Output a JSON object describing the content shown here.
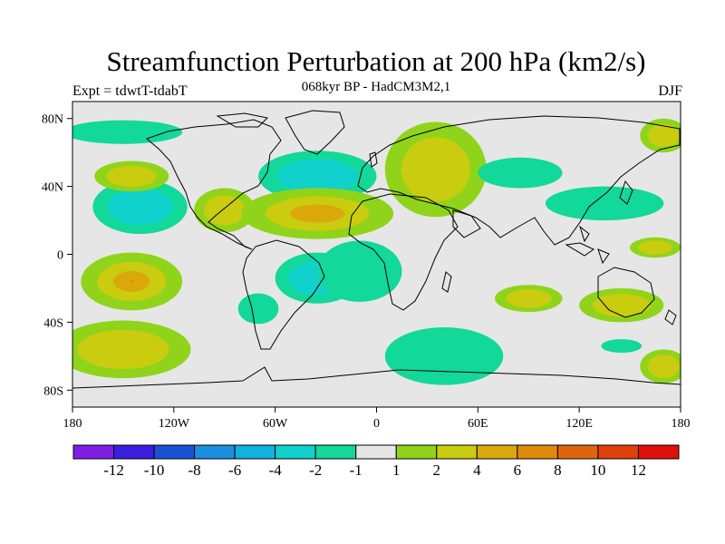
{
  "chart_data": {
    "type": "heatmap",
    "title": "Streamfunction Perturbation at 200 hPa (km2/s)",
    "subtitle": "068kyr BP - HadCM3M2,1",
    "left_label": "Expt = tdwtT-tdabT",
    "right_label": "DJF",
    "xlim": [
      -180,
      180
    ],
    "ylim": [
      -90,
      90
    ],
    "x_ticks": [
      {
        "value": -180,
        "label": "180"
      },
      {
        "value": -120,
        "label": "120W"
      },
      {
        "value": -60,
        "label": "60W"
      },
      {
        "value": 0,
        "label": "0"
      },
      {
        "value": 60,
        "label": "60E"
      },
      {
        "value": 120,
        "label": "120E"
      },
      {
        "value": 180,
        "label": "180"
      }
    ],
    "y_ticks": [
      {
        "value": 80,
        "label": "80N"
      },
      {
        "value": 40,
        "label": "40N"
      },
      {
        "value": 0,
        "label": "0"
      },
      {
        "value": -40,
        "label": "40S"
      },
      {
        "value": -80,
        "label": "80S"
      }
    ],
    "colorbar": {
      "colors": [
        "#7f1fe6",
        "#3b1ee0",
        "#1a52d6",
        "#1a8fe0",
        "#10b3e0",
        "#11d1cc",
        "#12d89a",
        "#e6e6e6",
        "#8fd41a",
        "#c9cc0f",
        "#dba80c",
        "#e08a0a",
        "#e0650a",
        "#e0400a",
        "#e00f0a"
      ],
      "labels": [
        "-12",
        "-10",
        "-8",
        "-6",
        "-4",
        "-2",
        "-1",
        "1",
        "2",
        "4",
        "6",
        "8",
        "10",
        "12"
      ]
    },
    "anomalies": [
      {
        "lon": -140,
        "lat": 28,
        "rlon": 28,
        "rlat": 16,
        "value": -3
      },
      {
        "lon": -145,
        "lat": 46,
        "rlon": 22,
        "rlat": 9,
        "value": 2.5
      },
      {
        "lon": -150,
        "lat": 72,
        "rlon": 35,
        "rlat": 7,
        "value": -1.5
      },
      {
        "lon": -145,
        "lat": -16,
        "rlon": 30,
        "rlat": 17,
        "value": 6
      },
      {
        "lon": -150,
        "lat": -56,
        "rlon": 40,
        "rlat": 17,
        "value": 2.5
      },
      {
        "lon": -90,
        "lat": 26,
        "rlon": 18,
        "rlat": 13,
        "value": 3
      },
      {
        "lon": -35,
        "lat": 46,
        "rlon": 35,
        "rlat": 15,
        "value": -3
      },
      {
        "lon": -35,
        "lat": 24,
        "rlon": 45,
        "rlat": 15,
        "value": 5
      },
      {
        "lon": 35,
        "lat": 50,
        "rlon": 30,
        "rlat": 28,
        "value": 3
      },
      {
        "lon": -35,
        "lat": -14,
        "rlon": 25,
        "rlat": 15,
        "value": -3
      },
      {
        "lon": -70,
        "lat": -32,
        "rlon": 12,
        "rlat": 9,
        "value": -1.5
      },
      {
        "lon": -10,
        "lat": -10,
        "rlon": 25,
        "rlat": 18,
        "value": -1.5
      },
      {
        "lon": 40,
        "lat": -60,
        "rlon": 35,
        "rlat": 17,
        "value": -1.5
      },
      {
        "lon": 85,
        "lat": 48,
        "rlon": 25,
        "rlat": 9,
        "value": -1.5
      },
      {
        "lon": 135,
        "lat": 30,
        "rlon": 35,
        "rlat": 10,
        "value": -1.5
      },
      {
        "lon": 90,
        "lat": -26,
        "rlon": 20,
        "rlat": 8,
        "value": 2.5
      },
      {
        "lon": 145,
        "lat": -30,
        "rlon": 25,
        "rlat": 10,
        "value": 2.5
      },
      {
        "lon": 165,
        "lat": 4,
        "rlon": 15,
        "rlat": 6,
        "value": 2.5
      },
      {
        "lon": 170,
        "lat": 70,
        "rlon": 14,
        "rlat": 10,
        "value": 2.5
      },
      {
        "lon": 170,
        "lat": -66,
        "rlon": 14,
        "rlat": 10,
        "value": 2.5
      },
      {
        "lon": 145,
        "lat": -54,
        "rlon": 12,
        "rlat": 4,
        "value": -1.5
      }
    ]
  }
}
